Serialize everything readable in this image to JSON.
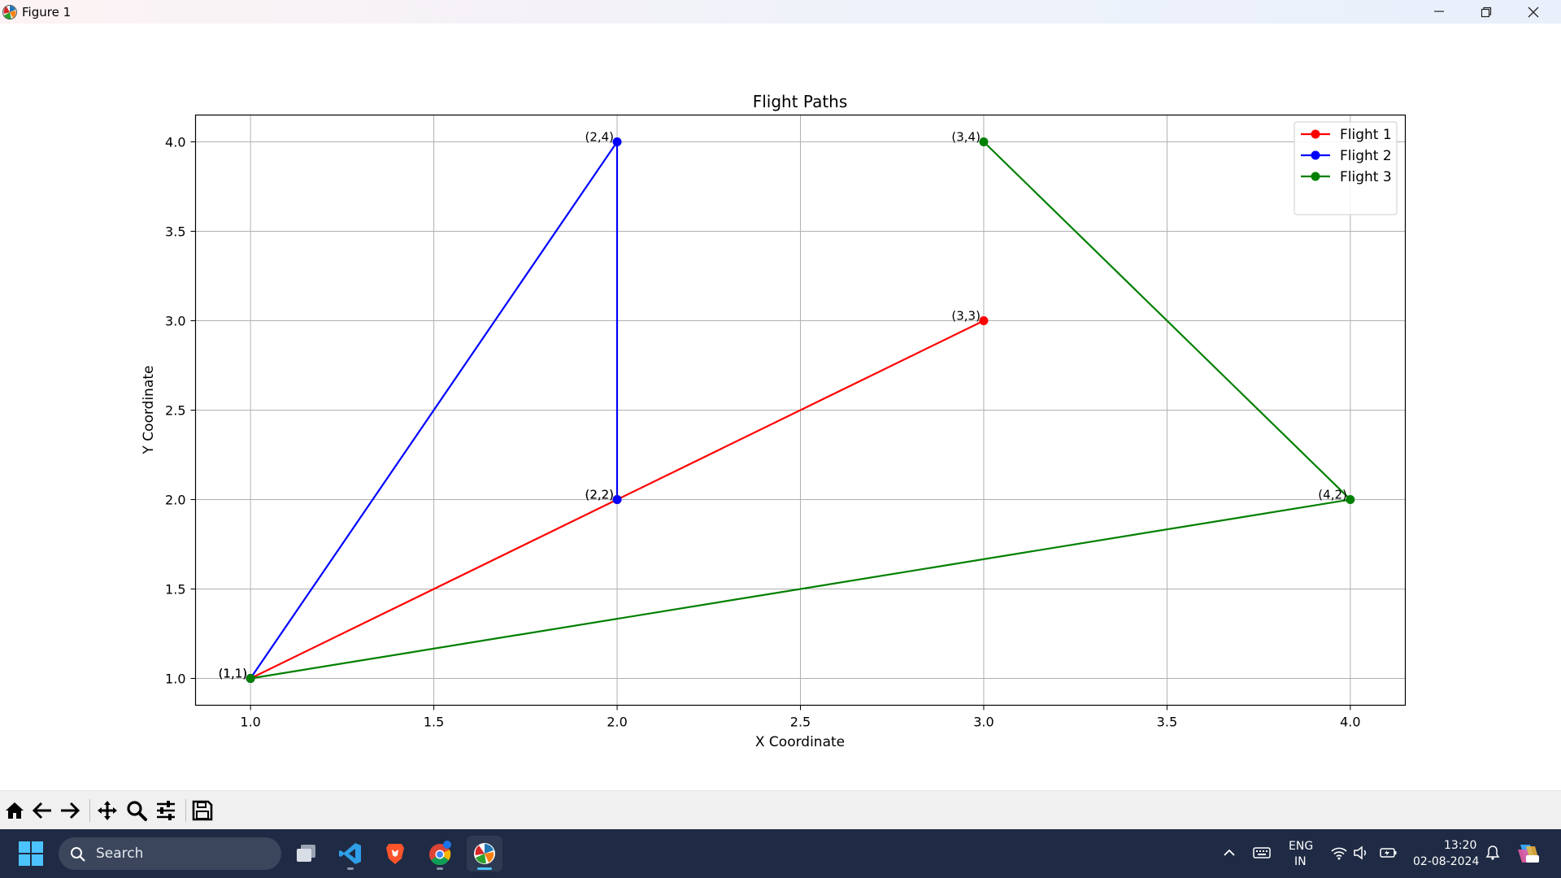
{
  "window": {
    "title": "Figure 1",
    "icon": "matplotlib-icon",
    "controls": [
      "minimize-icon",
      "restore-icon",
      "close-icon"
    ]
  },
  "chart_data": {
    "type": "line",
    "title": "Flight Paths",
    "xlabel": "X Coordinate",
    "ylabel": "Y Coordinate",
    "xlim": [
      0.85,
      4.15
    ],
    "ylim": [
      0.85,
      4.15
    ],
    "xticks": [
      1.0,
      1.5,
      2.0,
      2.5,
      3.0,
      3.5,
      4.0
    ],
    "yticks": [
      1.0,
      1.5,
      2.0,
      2.5,
      3.0,
      3.5,
      4.0
    ],
    "xtick_labels": [
      "1.0",
      "1.5",
      "2.0",
      "2.5",
      "3.0",
      "3.5",
      "4.0"
    ],
    "ytick_labels": [
      "1.0",
      "1.5",
      "2.0",
      "2.5",
      "3.0",
      "3.5",
      "4.0"
    ],
    "grid": true,
    "legend_position": "top-right",
    "series": [
      {
        "name": "Flight 1",
        "color": "#ff0000",
        "x": [
          1,
          2,
          3
        ],
        "y": [
          1,
          2,
          3
        ],
        "labels": [
          "(1,1)",
          "(2,2)",
          "(3,3)"
        ]
      },
      {
        "name": "Flight 2",
        "color": "#0000ff",
        "x": [
          1,
          2,
          2
        ],
        "y": [
          1,
          4,
          2
        ],
        "labels": [
          "(1,1)",
          "(2,4)",
          "(2,2)"
        ]
      },
      {
        "name": "Flight 3",
        "color": "#008000",
        "x": [
          1,
          4,
          3
        ],
        "y": [
          1,
          2,
          4
        ],
        "labels": [
          "(1,1)",
          "(4,2)",
          "(3,4)"
        ]
      }
    ]
  },
  "toolbar": {
    "tools": [
      "home-icon",
      "back-icon",
      "forward-icon",
      "pan-icon",
      "zoom-icon",
      "configure-subplots-icon",
      "save-icon"
    ]
  },
  "taskbar": {
    "search_label": "Search",
    "apps": [
      "task-view-icon",
      "vscode-icon",
      "brave-icon",
      "chrome-icon",
      "matplotlib-icon"
    ],
    "lang_top": "ENG",
    "lang_bottom": "IN",
    "time": "13:20",
    "date": "02-08-2024"
  }
}
